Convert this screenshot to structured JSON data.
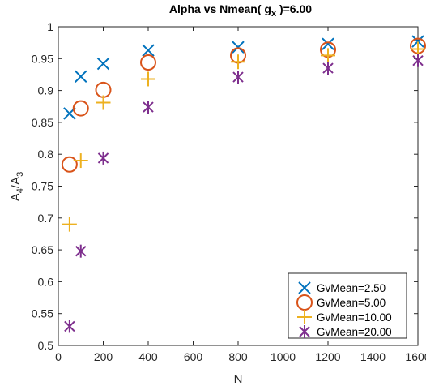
{
  "chart_data": {
    "type": "scatter",
    "title_main": "Alpha vs Nmean( g",
    "title_sub": "x",
    "title_tail": " )=6.00",
    "xlabel": "N",
    "ylabel_main": "A",
    "ylabel_sub1": "4",
    "ylabel_sep": "/A",
    "ylabel_sub2": "3",
    "xlim": [
      0,
      1600
    ],
    "ylim": [
      0.5,
      1.0
    ],
    "xticks": [
      0,
      200,
      400,
      600,
      800,
      1000,
      1200,
      1400,
      1600
    ],
    "yticks": [
      0.5,
      0.55,
      0.6,
      0.65,
      0.7,
      0.75,
      0.8,
      0.85,
      0.9,
      0.95,
      1.0
    ],
    "xtick_labels": [
      "0",
      "200",
      "400",
      "600",
      "800",
      "1000",
      "1200",
      "1400",
      "1600"
    ],
    "ytick_labels": [
      "0.5",
      "0.55",
      "0.6",
      "0.65",
      "0.7",
      "0.75",
      "0.8",
      "0.85",
      "0.9",
      "0.95",
      "1"
    ],
    "grid": false,
    "legend_position": "bottom-right",
    "series": [
      {
        "name": "GvMean=2.50",
        "marker": "x",
        "color": "#0072BD",
        "x": [
          50,
          100,
          200,
          400,
          800,
          1200,
          1600
        ],
        "y": [
          0.864,
          0.922,
          0.942,
          0.963,
          0.968,
          0.973,
          0.977
        ]
      },
      {
        "name": "GvMean=5.00",
        "marker": "o",
        "color": "#D95319",
        "x": [
          50,
          100,
          200,
          400,
          800,
          1200,
          1600
        ],
        "y": [
          0.784,
          0.872,
          0.901,
          0.944,
          0.955,
          0.964,
          0.97
        ]
      },
      {
        "name": "GvMean=10.00",
        "marker": "+",
        "color": "#EDB120",
        "x": [
          50,
          100,
          200,
          400,
          800,
          1200,
          1600
        ],
        "y": [
          0.69,
          0.79,
          0.881,
          0.918,
          0.945,
          0.955,
          0.965
        ]
      },
      {
        "name": "GvMean=20.00",
        "marker": "*",
        "color": "#7E2F8E",
        "x": [
          50,
          100,
          200,
          400,
          800,
          1200,
          1600
        ],
        "y": [
          0.53,
          0.648,
          0.794,
          0.874,
          0.921,
          0.935,
          0.947
        ]
      }
    ]
  }
}
